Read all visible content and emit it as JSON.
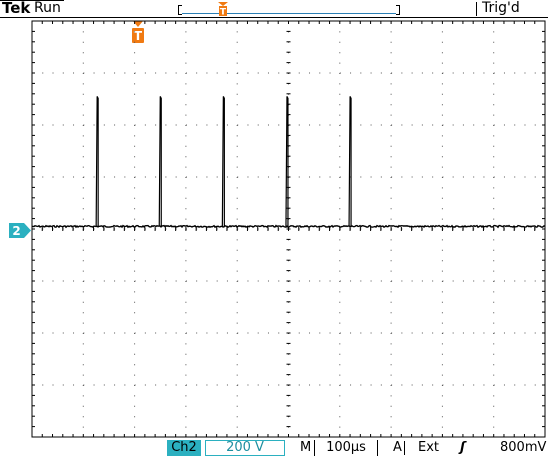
{
  "header": {
    "brand": "Tek",
    "acquisition_state": "Run",
    "trigger_status": "Trig'd"
  },
  "channel": {
    "number_label": "2",
    "badge": "Ch2",
    "volts_per_div": "200 V",
    "color": "#2bb0c0"
  },
  "timebase": {
    "mode_label": "M",
    "time_per_div": "100µs"
  },
  "trigger": {
    "coupling_label": "A",
    "source": "Ext",
    "slope_glyph": "ʃ",
    "level": "800mV",
    "marker_color": "#f07a12",
    "marker_letter": "T"
  },
  "display": {
    "divisions_x": 10,
    "divisions_y": 8,
    "trace_color": "#000000",
    "grid_color": "#555555"
  },
  "waveform": {
    "baseline_div": 0.05,
    "pulse_positions_div": [
      1.27,
      2.5,
      3.73,
      4.97,
      6.2
    ],
    "pulse_amplitude_div": 2.5,
    "icons": [
      "trigger-position-icon",
      "record-position-icon",
      "channel-2-marker-icon"
    ]
  }
}
